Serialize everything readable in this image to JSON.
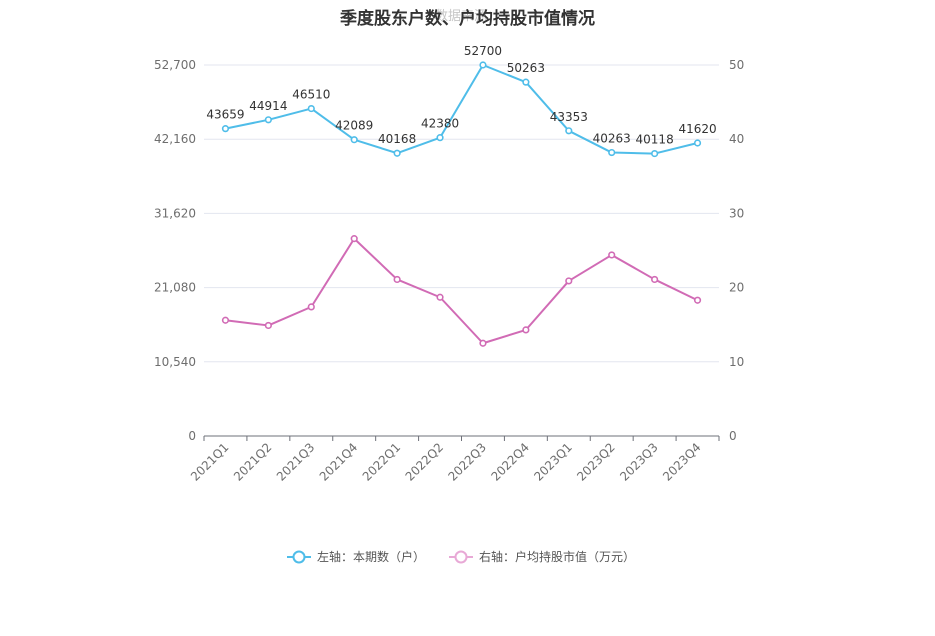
{
  "chart_data": {
    "type": "line",
    "title": "季度股东户数、户均持股市值情况",
    "watermark": "数据来源：",
    "categories": [
      "2021Q1",
      "2021Q2",
      "2021Q3",
      "2021Q4",
      "2022Q1",
      "2022Q2",
      "2022Q3",
      "2022Q4",
      "2023Q1",
      "2023Q2",
      "2023Q3",
      "2023Q4"
    ],
    "left_axis": {
      "ticks": [
        "0",
        "10,540",
        "21,080",
        "31,620",
        "42,160",
        "52,700"
      ],
      "min": 0,
      "max": 52700
    },
    "right_axis": {
      "ticks": [
        "0",
        "10",
        "20",
        "30",
        "40",
        "50"
      ],
      "min": 0,
      "max": 50
    },
    "series": [
      {
        "name": "左轴：本期数（户）",
        "axis": "left",
        "color": "#4fbde9",
        "values": [
          43659,
          44914,
          46510,
          42089,
          40168,
          42380,
          52700,
          50263,
          43353,
          40263,
          40118,
          41620
        ],
        "labels": [
          "43659",
          "44914",
          "46510",
          "42089",
          "40168",
          "42380",
          "52700",
          "50263",
          "43353",
          "40263",
          "40118",
          "41620"
        ]
      },
      {
        "name": "右轴：户均持股市值（万元）",
        "axis": "right",
        "color": "#d16bb5",
        "values": [
          15.6,
          14.9,
          17.4,
          26.6,
          21.1,
          18.7,
          12.5,
          14.3,
          20.9,
          24.4,
          21.1,
          18.3
        ]
      }
    ],
    "grid": true,
    "legend_position": "bottom"
  }
}
